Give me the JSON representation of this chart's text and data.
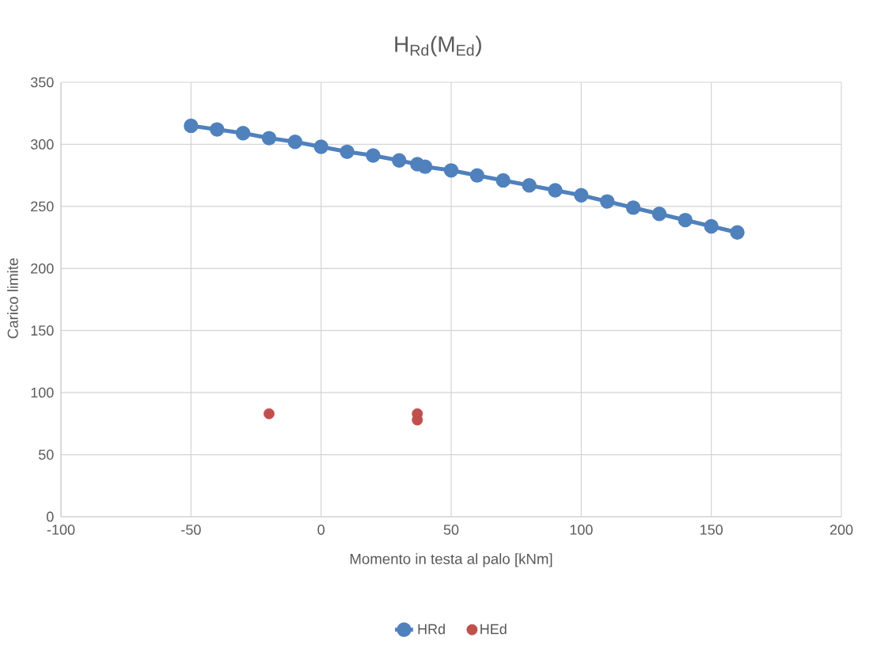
{
  "chart_data": {
    "type": "line",
    "title": "H$_{Rd}$(M$_{Ed}$)",
    "xlabel": "Momento in testa al palo [kNm]",
    "ylabel": "Carico limite",
    "xlim": [
      -100,
      200
    ],
    "xticks": [
      -100,
      -50,
      0,
      50,
      100,
      150,
      200
    ],
    "ylim": [
      0,
      350
    ],
    "yticks": [
      0,
      50,
      100,
      150,
      200,
      250,
      300,
      350
    ],
    "grid": true,
    "legend": "bottom",
    "marker": "circle",
    "series": [
      {
        "name": "HRd",
        "color": "#4f81bd",
        "x": [
          -50,
          -40,
          -30,
          -20,
          -10,
          0,
          10,
          20,
          30,
          37,
          40,
          50,
          60,
          70,
          80,
          90,
          100,
          110,
          120,
          130,
          140,
          150,
          160
        ],
        "values": [
          315,
          312,
          309,
          305,
          302,
          298,
          294,
          291,
          287,
          284,
          282,
          279,
          275,
          271,
          267,
          263,
          259,
          254,
          249,
          244,
          239,
          234,
          229
        ]
      },
      {
        "name": "HEd",
        "type": "scatter",
        "color": "#c0504d",
        "x": [
          -20,
          37,
          37
        ],
        "values": [
          83,
          83,
          78
        ]
      }
    ]
  }
}
